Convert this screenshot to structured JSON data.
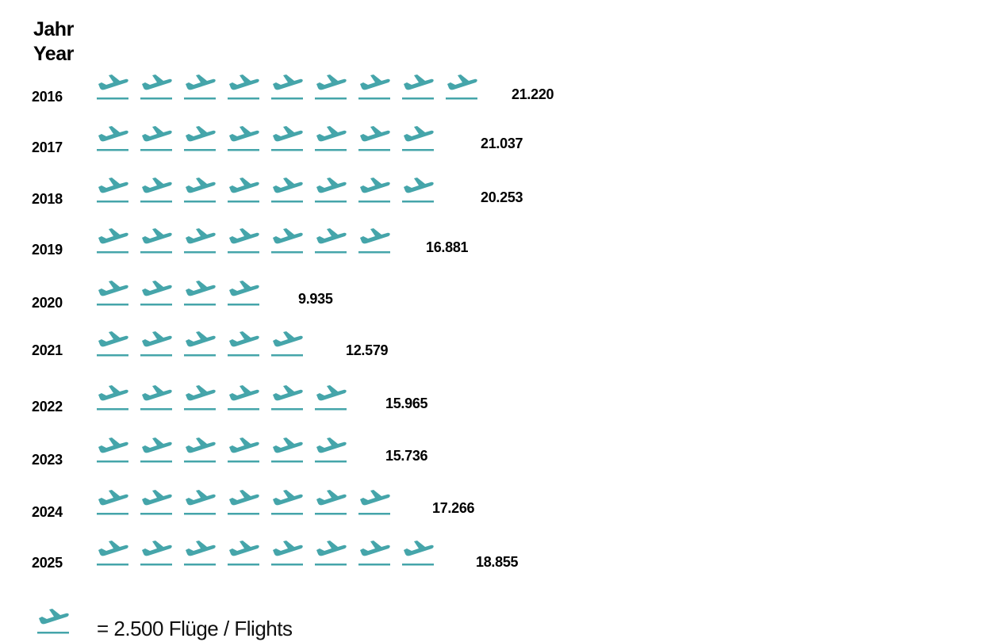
{
  "header": {
    "line1": "Jahr",
    "line2": "Year"
  },
  "colors": {
    "icon": "#45A5AA",
    "text": "#000000"
  },
  "legend": {
    "icon": "plane-departure-icon",
    "text": "= 2.500 Flüge / Flights"
  },
  "rows": [
    {
      "year": "2016",
      "value": "21.220",
      "icons": 9
    },
    {
      "year": "2017",
      "value": "21.037",
      "icons": 8
    },
    {
      "year": "2018",
      "value": "20.253",
      "icons": 8
    },
    {
      "year": "2019",
      "value": "16.881",
      "icons": 7
    },
    {
      "year": "2020",
      "value": "9.935",
      "icons": 4
    },
    {
      "year": "2021",
      "value": "12.579",
      "icons": 5
    },
    {
      "year": "2022",
      "value": "15.965",
      "icons": 6
    },
    {
      "year": "2023",
      "value": "15.736",
      "icons": 6
    },
    {
      "year": "2024",
      "value": "17.266",
      "icons": 7
    },
    {
      "year": "2025",
      "value": "18.855",
      "icons": 8
    }
  ],
  "chart_data": {
    "type": "bar",
    "subtype": "pictogram",
    "title": "",
    "xlabel": "",
    "ylabel": "Jahr / Year",
    "categories": [
      "2016",
      "2017",
      "2018",
      "2019",
      "2020",
      "2021",
      "2022",
      "2023",
      "2024",
      "2025"
    ],
    "values": [
      21220,
      21037,
      20253,
      16881,
      9935,
      12579,
      15965,
      15736,
      17266,
      18855
    ],
    "icon_counts": [
      9,
      8,
      8,
      7,
      4,
      5,
      6,
      6,
      7,
      8
    ],
    "unit_per_icon": 2500,
    "legend": [
      "= 2.500 Flüge / Flights"
    ],
    "orientation": "horizontal",
    "grid": false
  }
}
